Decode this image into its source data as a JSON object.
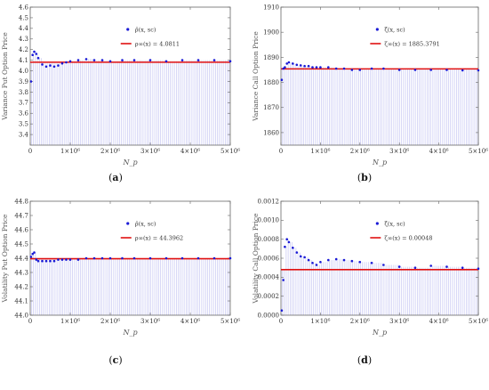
{
  "chart_data": [
    {
      "type": "scatter",
      "panel": "(a)",
      "caption": "a",
      "xlabel": "N_p",
      "ylabel": "Variance Put Option Price",
      "xlim": [
        0,
        5000000
      ],
      "ylim": [
        3.3,
        4.6
      ],
      "yticks": [
        "3.4",
        "3.5",
        "3.6",
        "3.7",
        "3.8",
        "3.9",
        "4.0",
        "4.1",
        "4.2",
        "4.3",
        "4.4",
        "4.5",
        "4.6"
      ],
      "xticks": [
        "0",
        "1×10⁶",
        "2×10⁶",
        "3×10⁶",
        "4×10⁶",
        "5×10⁶"
      ],
      "reference": 4.0811,
      "legend": {
        "series": "ρ̂(x, sc)",
        "ref": "ρ∞(x) = 4.0811"
      },
      "x": [
        20000,
        60000,
        100000,
        150000,
        200000,
        300000,
        400000,
        500000,
        600000,
        700000,
        800000,
        900000,
        1000000,
        1200000,
        1400000,
        1600000,
        1800000,
        2000000,
        2300000,
        2600000,
        3000000,
        3400000,
        3800000,
        4200000,
        4600000,
        5000000
      ],
      "values": [
        3.9,
        4.15,
        4.18,
        4.16,
        4.12,
        4.06,
        4.04,
        4.05,
        4.04,
        4.05,
        4.07,
        4.08,
        4.09,
        4.1,
        4.11,
        4.1,
        4.1,
        4.09,
        4.1,
        4.1,
        4.1,
        4.09,
        4.1,
        4.1,
        4.1,
        4.09
      ]
    },
    {
      "type": "scatter",
      "panel": "(b)",
      "caption": "b",
      "xlabel": "N_p",
      "ylabel": "Variance Call Option Price",
      "xlim": [
        0,
        5000000
      ],
      "ylim": [
        1855,
        1910
      ],
      "yticks": [
        "1860",
        "1870",
        "1880",
        "1890",
        "1900",
        "1910"
      ],
      "xticks": [
        "0",
        "1×10⁶",
        "2×10⁶",
        "3×10⁶",
        "4×10⁶",
        "5×10⁶"
      ],
      "reference": 1885.3791,
      "legend": {
        "series": "ζ̂(x, sc)",
        "ref": "ζ∞(x) = 1885.3791"
      },
      "x": [
        20000,
        60000,
        100000,
        150000,
        200000,
        300000,
        400000,
        500000,
        600000,
        700000,
        800000,
        900000,
        1000000,
        1200000,
        1400000,
        1600000,
        1800000,
        2000000,
        2300000,
        2600000,
        3000000,
        3400000,
        3800000,
        4200000,
        4600000,
        5000000
      ],
      "values": [
        1881.0,
        1885.5,
        1886.0,
        1887.5,
        1888.0,
        1887.5,
        1887.0,
        1886.8,
        1886.5,
        1886.5,
        1886.0,
        1886.0,
        1886.0,
        1886.0,
        1885.5,
        1885.5,
        1885.0,
        1885.0,
        1885.5,
        1885.5,
        1885.0,
        1885.0,
        1885.0,
        1885.0,
        1884.8,
        1884.8
      ]
    },
    {
      "type": "scatter",
      "panel": "(c)",
      "caption": "c",
      "xlabel": "N_p",
      "ylabel": "Volatility Put Option Price",
      "xlim": [
        0,
        5000000
      ],
      "ylim": [
        44.0,
        44.8
      ],
      "yticks": [
        "44.0",
        "44.1",
        "44.2",
        "44.3",
        "44.4",
        "44.5",
        "44.6",
        "44.7",
        "44.8"
      ],
      "xticks": [
        "0",
        "1×10⁶",
        "2×10⁶",
        "3×10⁶",
        "4×10⁶",
        "5×10⁶"
      ],
      "reference": 44.3962,
      "legend": {
        "series": "ρ̂(x, sc)",
        "ref": "ρ∞(x) = 44.3962"
      },
      "x": [
        20000,
        60000,
        100000,
        150000,
        200000,
        300000,
        400000,
        500000,
        600000,
        700000,
        800000,
        900000,
        1000000,
        1200000,
        1400000,
        1600000,
        1800000,
        2000000,
        2300000,
        2600000,
        3000000,
        3400000,
        3800000,
        4200000,
        4600000,
        5000000
      ],
      "values": [
        44.41,
        44.43,
        44.44,
        44.39,
        44.38,
        44.38,
        44.38,
        44.38,
        44.38,
        44.39,
        44.39,
        44.39,
        44.39,
        44.39,
        44.4,
        44.4,
        44.4,
        44.4,
        44.4,
        44.4,
        44.4,
        44.4,
        44.4,
        44.4,
        44.4,
        44.4
      ]
    },
    {
      "type": "scatter",
      "panel": "(d)",
      "caption": "d",
      "xlabel": "N_p",
      "ylabel": "Volatility Call Option Price",
      "xlim": [
        0,
        5000000
      ],
      "ylim": [
        0.0,
        0.0012
      ],
      "yticks": [
        "0.0000",
        "0.0002",
        "0.0004",
        "0.0006",
        "0.0008",
        "0.0010",
        "0.0012"
      ],
      "xticks": [
        "0",
        "1×10⁶",
        "2×10⁶",
        "3×10⁶",
        "4×10⁶",
        "5×10⁶"
      ],
      "reference": 0.00048,
      "legend": {
        "series": "ζ̂(x, sc)",
        "ref": "ζ∞(x) = 0.00048"
      },
      "x": [
        20000,
        60000,
        100000,
        150000,
        200000,
        300000,
        400000,
        500000,
        600000,
        700000,
        800000,
        900000,
        1000000,
        1200000,
        1400000,
        1600000,
        1800000,
        2000000,
        2300000,
        2600000,
        3000000,
        3400000,
        3800000,
        4200000,
        4600000,
        5000000
      ],
      "values": [
        5e-05,
        0.00037,
        0.00072,
        0.0008,
        0.00077,
        0.00071,
        0.00066,
        0.00062,
        0.00061,
        0.00058,
        0.00055,
        0.00053,
        0.00056,
        0.00058,
        0.00059,
        0.00058,
        0.00057,
        0.00056,
        0.00055,
        0.00053,
        0.00051,
        0.0005,
        0.00052,
        0.00051,
        0.0005,
        0.00049
      ]
    }
  ],
  "colors": {
    "points": "#1a1ad6",
    "reference": "#e01010",
    "fill": "#b8b8f0",
    "frame": "#666666"
  }
}
